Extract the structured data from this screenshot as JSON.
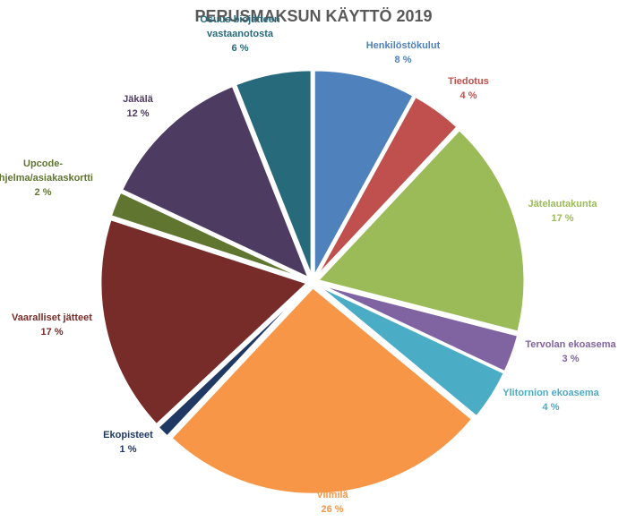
{
  "chart_data": {
    "type": "pie",
    "title": "PERUSMAKSUN KÄYTTÖ 2019",
    "slices": [
      {
        "name": "Henkilöstökulut",
        "value": 8,
        "display": "8 %",
        "color": "#4F81BD"
      },
      {
        "name": "Tiedotus",
        "value": 4,
        "display": "4 %",
        "color": "#C0504D"
      },
      {
        "name": "Jätelautakunta",
        "value": 17,
        "display": "17 %",
        "color": "#9BBB59"
      },
      {
        "name": "Tervolan ekoasema",
        "value": 3,
        "display": "3 %",
        "color": "#8064A2"
      },
      {
        "name": "Ylitornion ekoasema",
        "value": 4,
        "display": "4 %",
        "color": "#4BACC6"
      },
      {
        "name": "Vilmilä",
        "value": 26,
        "display": "26 %",
        "color": "#F79646"
      },
      {
        "name": "Ekopisteet",
        "value": 1,
        "display": "1 %",
        "color": "#1F3864"
      },
      {
        "name": "Vaaralliset jätteet",
        "value": 17,
        "display": "17 %",
        "color": "#772C2A"
      },
      {
        "name": "Upcode-ohjelma/asiakaskortti",
        "value": 2,
        "display": "2 %",
        "color": "#5F7530"
      },
      {
        "name": "Jäkälä",
        "value": 12,
        "display": "12 %",
        "color": "#4D3B62"
      },
      {
        "name": "Osuus biojätteen vastaanotosta",
        "value": 6,
        "display": "6 %",
        "color": "#276A7C"
      }
    ]
  }
}
